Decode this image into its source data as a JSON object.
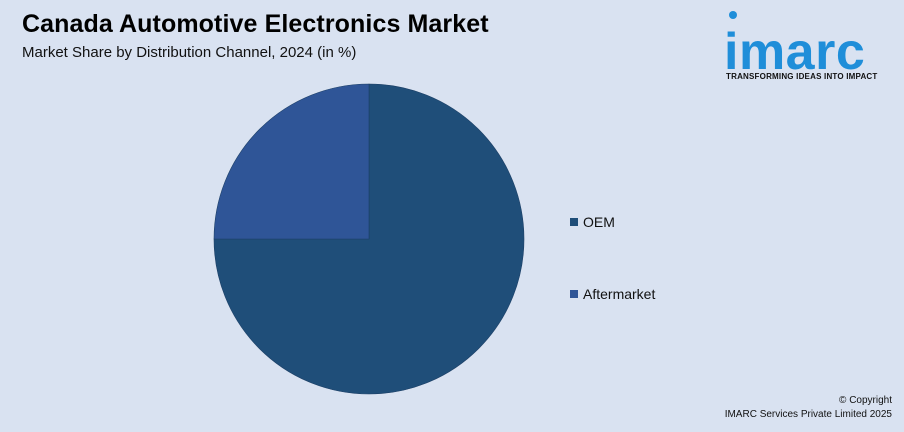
{
  "header": {
    "title": "Canada Automotive Electronics Market",
    "subtitle": "Market Share by Distribution Channel, 2024 (in %)"
  },
  "logo": {
    "wordmark": "imarc",
    "tagline": "TRANSFORMING IDEAS INTO IMPACT",
    "color": "#1f8ed9"
  },
  "legend": {
    "placement": "right",
    "items": [
      {
        "label": "OEM",
        "color": "#1f4e79"
      },
      {
        "label": "Aftermarket",
        "color": "#2f5597"
      }
    ]
  },
  "chart_data": {
    "type": "pie",
    "title": "Canada Automotive Electronics Market",
    "subtitle": "Market Share by Distribution Channel, 2024 (in %)",
    "categories": [
      "OEM",
      "Aftermarket"
    ],
    "values": [
      75,
      25
    ],
    "colors": [
      "#1f4e79",
      "#2f5597"
    ],
    "legend": "right"
  },
  "footer": {
    "line1": "© Copyright",
    "line2": "IMARC Services Private Limited 2025"
  }
}
